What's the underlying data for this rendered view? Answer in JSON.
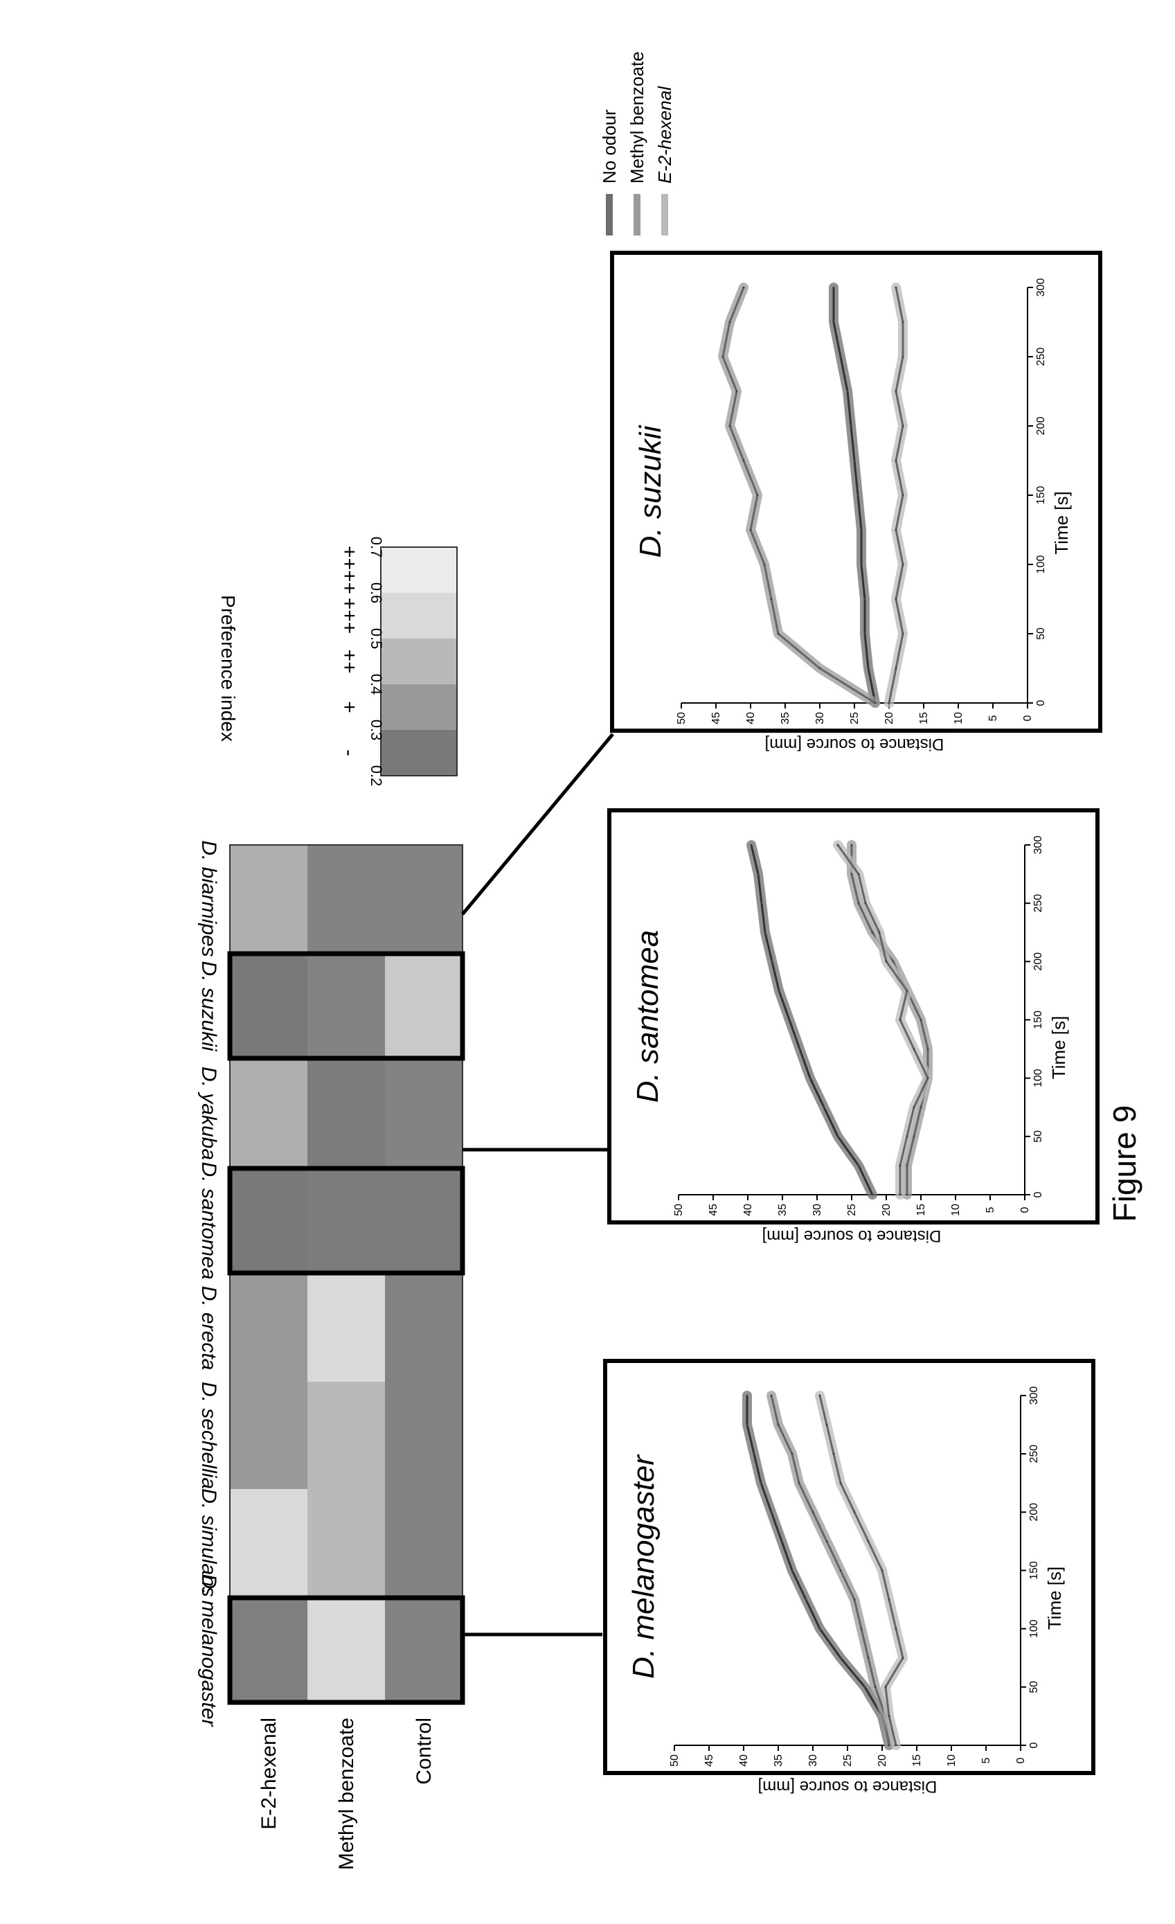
{
  "figure_label": "Figure 9",
  "colors": {
    "no_odour": "#6e6e6e",
    "methyl": "#9a9a9a",
    "hexenal": "#b9b9b9",
    "frame": "#000000"
  },
  "chart_data": [
    {
      "type": "heatmap",
      "title": "",
      "rows": [
        "Control",
        "Methyl benzoate",
        "E-2-hexenal"
      ],
      "columns": [
        "D. melanogaster",
        "D. simulans",
        "D. sechellia",
        "D. erecta",
        "D. santomea",
        "D. yakuba",
        "D. suzukii",
        "D. biarmipes"
      ],
      "values": [
        [
          0.28,
          0.28,
          0.28,
          0.28,
          0.26,
          0.28,
          0.5,
          0.28
        ],
        [
          0.55,
          0.45,
          0.45,
          0.55,
          0.26,
          0.26,
          0.28,
          0.28
        ],
        [
          0.27,
          0.55,
          0.35,
          0.35,
          0.25,
          0.42,
          0.25,
          0.42
        ]
      ],
      "highlighted_columns": [
        "D. melanogaster",
        "D. santomea",
        "D. suzukii"
      ],
      "colorbar": {
        "title": "Preference index",
        "range": [
          0.2,
          0.7
        ],
        "ticks": [
          "0.7",
          "0.6",
          "0.5",
          "0.4",
          "0.3",
          "0.2"
        ],
        "levels": [
          "++++",
          "+++",
          "++",
          "+",
          "-"
        ],
        "level_values": [
          0.25,
          0.35,
          0.45,
          0.55,
          0.65
        ]
      }
    },
    {
      "type": "line",
      "title": "D. melanogaster",
      "xlabel": "Time [s]",
      "ylabel": "Distance to source [mm]",
      "xlim": [
        0,
        300
      ],
      "ylim": [
        0,
        50
      ],
      "xticks": [
        "0",
        "50",
        "100",
        "150",
        "200",
        "250",
        "300"
      ],
      "yticks": [
        "0",
        "5",
        "10",
        "15",
        "20",
        "25",
        "30",
        "35",
        "40",
        "45",
        "50"
      ],
      "x": [
        0,
        25,
        50,
        75,
        100,
        125,
        150,
        175,
        200,
        225,
        250,
        275,
        300
      ],
      "series": [
        {
          "name": "No odour",
          "values": [
            19,
            20,
            22.5,
            26,
            29,
            31,
            33,
            34.5,
            36,
            37.5,
            38.5,
            39.5,
            39.5
          ]
        },
        {
          "name": "Methyl benzoate",
          "values": [
            19,
            19.5,
            21,
            22,
            23,
            24,
            26,
            28,
            30,
            32,
            33,
            35,
            36
          ]
        },
        {
          "name": "E-2-hexenal",
          "values": [
            18,
            19,
            19.5,
            17,
            18,
            19,
            20,
            22,
            24,
            26,
            27,
            28,
            29
          ]
        }
      ]
    },
    {
      "type": "line",
      "title": "D. santomea",
      "xlabel": "Time [s]",
      "ylabel": "Distance to source [mm]",
      "xlim": [
        0,
        300
      ],
      "ylim": [
        0,
        50
      ],
      "xticks": [
        "0",
        "50",
        "100",
        "150",
        "200",
        "250",
        "300"
      ],
      "yticks": [
        "0",
        "5",
        "10",
        "15",
        "20",
        "25",
        "30",
        "35",
        "40",
        "45",
        "50"
      ],
      "x": [
        0,
        25,
        50,
        75,
        100,
        125,
        150,
        175,
        200,
        225,
        250,
        275,
        300
      ],
      "series": [
        {
          "name": "No odour",
          "values": [
            22,
            24,
            27,
            29,
            31,
            32.5,
            34,
            35.5,
            36.5,
            37.5,
            38,
            38.5,
            39.5
          ]
        },
        {
          "name": "Methyl benzoate",
          "values": [
            17,
            17,
            16,
            15,
            14,
            14,
            15,
            17,
            19,
            22,
            24,
            25,
            25
          ]
        },
        {
          "name": "E-2-hexenal",
          "values": [
            18,
            18,
            17,
            16,
            14,
            16,
            18,
            17,
            20,
            21,
            23,
            24,
            27
          ]
        }
      ]
    },
    {
      "type": "line",
      "title": "D. suzukii",
      "xlabel": "Time [s]",
      "ylabel": "Distance to source [mm]",
      "xlim": [
        0,
        300
      ],
      "ylim": [
        0,
        50
      ],
      "xticks": [
        "0",
        "50",
        "100",
        "150",
        "200",
        "250",
        "300"
      ],
      "yticks": [
        "0",
        "5",
        "10",
        "15",
        "20",
        "25",
        "30",
        "35",
        "40",
        "45",
        "50"
      ],
      "x": [
        0,
        25,
        50,
        75,
        100,
        125,
        150,
        175,
        200,
        225,
        250,
        275,
        300
      ],
      "series": [
        {
          "name": "No odour",
          "values": [
            22,
            23,
            23.5,
            23.5,
            24,
            24,
            24.5,
            25,
            25.5,
            26,
            27,
            28,
            28
          ]
        },
        {
          "name": "Methyl benzoate",
          "values": [
            22,
            30,
            36,
            37,
            38,
            40,
            39,
            41,
            43,
            42,
            44,
            43,
            41
          ]
        },
        {
          "name": "E-2-hexenal",
          "values": [
            20,
            19,
            18,
            19,
            18,
            19,
            18,
            19,
            18,
            19,
            18,
            18,
            19
          ]
        }
      ]
    }
  ],
  "legend": [
    "No odour",
    "Methyl benzoate",
    "E-2-hexenal"
  ]
}
